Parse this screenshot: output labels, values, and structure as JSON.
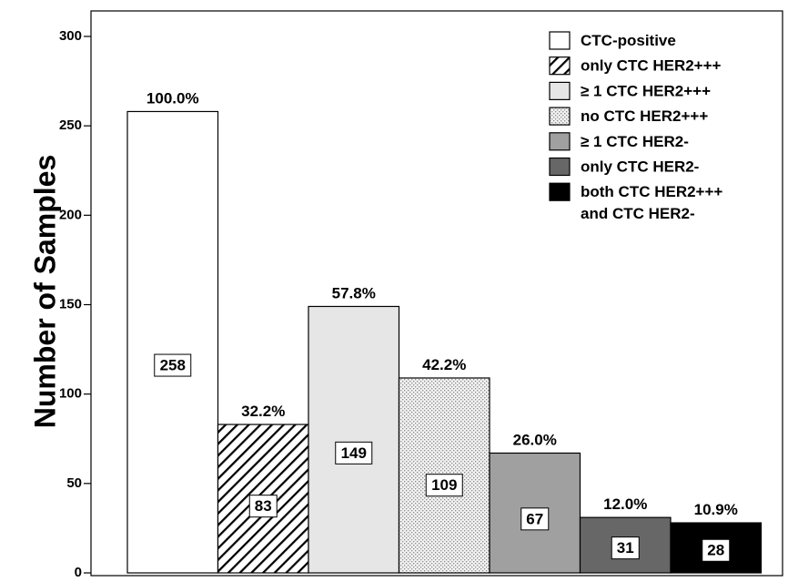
{
  "chart_data": {
    "type": "bar",
    "title": "",
    "xlabel": "",
    "ylabel": "Number of Samples",
    "ylim": [
      0,
      300
    ],
    "yticks": [
      0,
      50,
      100,
      150,
      200,
      250,
      300
    ],
    "grid": false,
    "legend_position": "top-right",
    "categories": [
      "CTC-positive",
      "only CTC HER2+++",
      "≥ 1 CTC HER2+++",
      "no CTC HER2+++",
      "≥ 1 CTC HER2-",
      "only CTC HER2-",
      "both CTC HER2+++ and CTC HER2-"
    ],
    "values": [
      258,
      83,
      149,
      109,
      67,
      31,
      28
    ],
    "percent_labels": [
      "100.0%",
      "32.2%",
      "57.8%",
      "42.2%",
      "26.0%",
      "12.0%",
      "10.9%"
    ],
    "count_labels": [
      "258",
      "83",
      "149",
      "109",
      "67",
      "31",
      "28"
    ],
    "fills": [
      "white",
      "hatch",
      "#e6e6e6",
      "dots",
      "#a0a0a0",
      "#676767",
      "#000000"
    ],
    "legend": [
      {
        "lines": [
          "CTC-positive"
        ]
      },
      {
        "lines": [
          "only CTC HER2+++"
        ]
      },
      {
        "lines": [
          "≥ 1 CTC HER2+++"
        ]
      },
      {
        "lines": [
          "no CTC HER2+++"
        ]
      },
      {
        "lines": [
          "≥ 1 CTC HER2-"
        ]
      },
      {
        "lines": [
          "only CTC HER2-"
        ]
      },
      {
        "lines": [
          "both CTC HER2+++",
          "and CTC HER2-"
        ]
      }
    ]
  }
}
